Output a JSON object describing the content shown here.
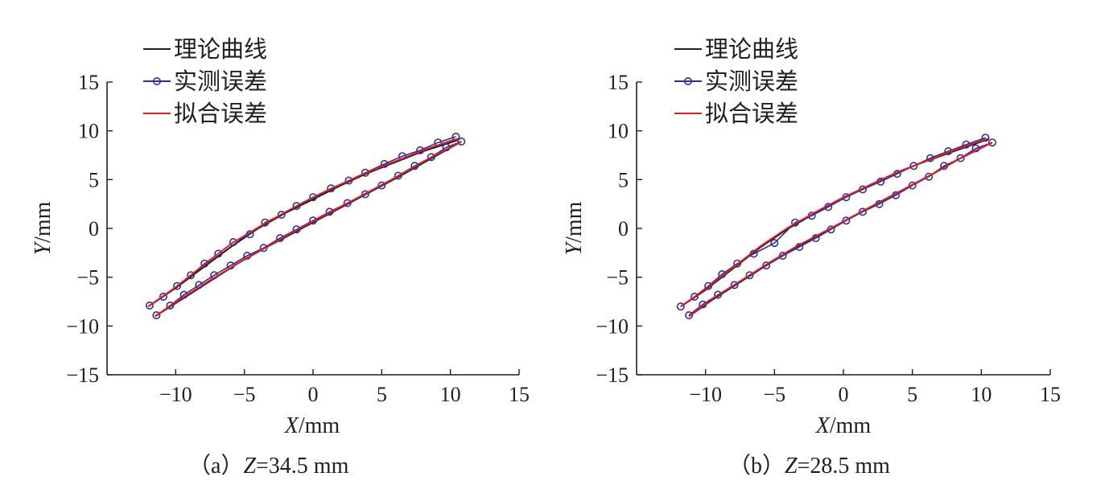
{
  "legend": {
    "theory": "理论曲线",
    "measured": "实测误差",
    "fitted": "拟合误差"
  },
  "colors": {
    "theory": "#231f20",
    "measured": "#2e3192",
    "fitted": "#ed1c24",
    "axis": "#231f20"
  },
  "chart_data": [
    {
      "type": "line",
      "caption_prefix": "（a）",
      "caption_var": "Z",
      "caption_value": "=34.5 mm",
      "xlabel_var": "X",
      "xlabel_unit": "/mm",
      "ylabel_var": "Y",
      "ylabel_unit": "/mm",
      "xlim": [
        -15,
        15
      ],
      "ylim": [
        -15,
        15
      ],
      "xticks": [
        -10,
        -5,
        0,
        5,
        10,
        15
      ],
      "yticks": [
        -15,
        -10,
        -5,
        0,
        5,
        10,
        15
      ],
      "series": [
        {
          "name": "理论曲线",
          "upper": [
            [
              -12.0,
              -8.0
            ],
            [
              -10.0,
              -6.1
            ],
            [
              -8.0,
              -4.0
            ],
            [
              -6.0,
              -1.9
            ],
            [
              -4.0,
              0.0
            ],
            [
              -2.0,
              1.6
            ],
            [
              0.0,
              3.0
            ],
            [
              2.0,
              4.4
            ],
            [
              4.0,
              5.7
            ],
            [
              6.0,
              6.8
            ],
            [
              8.0,
              7.9
            ],
            [
              10.0,
              8.8
            ],
            [
              10.6,
              9.1
            ]
          ],
          "lower": [
            [
              -11.5,
              -9.0
            ],
            [
              -9.5,
              -7.2
            ],
            [
              -7.5,
              -5.4
            ],
            [
              -5.5,
              -3.6
            ],
            [
              -3.5,
              -2.0
            ],
            [
              -1.5,
              -0.5
            ],
            [
              0.5,
              1.0
            ],
            [
              2.5,
              2.5
            ],
            [
              4.5,
              4.0
            ],
            [
              6.5,
              5.5
            ],
            [
              8.5,
              7.1
            ],
            [
              10.8,
              8.9
            ]
          ]
        },
        {
          "name": "实测误差",
          "upper": [
            [
              -11.9,
              -7.9
            ],
            [
              -10.9,
              -7.0
            ],
            [
              -9.9,
              -5.9
            ],
            [
              -8.9,
              -4.8
            ],
            [
              -7.9,
              -3.6
            ],
            [
              -6.9,
              -2.6
            ],
            [
              -5.8,
              -1.4
            ],
            [
              -4.6,
              -0.6
            ],
            [
              -3.5,
              0.6
            ],
            [
              -2.3,
              1.4
            ],
            [
              -1.2,
              2.3
            ],
            [
              0.0,
              3.2
            ],
            [
              1.3,
              4.1
            ],
            [
              2.6,
              4.9
            ],
            [
              3.8,
              5.7
            ],
            [
              5.2,
              6.6
            ],
            [
              6.5,
              7.4
            ],
            [
              7.8,
              8.0
            ],
            [
              9.1,
              8.8
            ],
            [
              10.4,
              9.4
            ]
          ],
          "lower": [
            [
              -11.4,
              -8.9
            ],
            [
              -10.4,
              -7.9
            ],
            [
              -9.4,
              -6.8
            ],
            [
              -8.3,
              -5.8
            ],
            [
              -7.2,
              -4.8
            ],
            [
              -6.0,
              -3.8
            ],
            [
              -4.8,
              -2.8
            ],
            [
              -3.6,
              -2.0
            ],
            [
              -2.4,
              -1.0
            ],
            [
              -1.2,
              -0.1
            ],
            [
              0.0,
              0.8
            ],
            [
              1.2,
              1.7
            ],
            [
              2.5,
              2.6
            ],
            [
              3.8,
              3.5
            ],
            [
              5.0,
              4.4
            ],
            [
              6.2,
              5.4
            ],
            [
              7.4,
              6.4
            ],
            [
              8.6,
              7.3
            ],
            [
              9.7,
              8.3
            ],
            [
              10.8,
              8.9
            ]
          ]
        },
        {
          "name": "拟合误差",
          "upper": [
            [
              -12.0,
              -8.0
            ],
            [
              -10.0,
              -6.0
            ],
            [
              -8.0,
              -3.8
            ],
            [
              -6.0,
              -1.6
            ],
            [
              -4.0,
              0.1
            ],
            [
              -2.0,
              1.7
            ],
            [
              0.0,
              3.2
            ],
            [
              2.0,
              4.5
            ],
            [
              4.0,
              5.8
            ],
            [
              6.0,
              6.9
            ],
            [
              8.0,
              8.0
            ],
            [
              10.0,
              9.0
            ],
            [
              10.6,
              9.2
            ]
          ],
          "lower": [
            [
              -11.5,
              -9.0
            ],
            [
              -9.5,
              -7.1
            ],
            [
              -7.5,
              -5.3
            ],
            [
              -5.5,
              -3.6
            ],
            [
              -3.5,
              -2.0
            ],
            [
              -1.5,
              -0.4
            ],
            [
              0.5,
              1.1
            ],
            [
              2.5,
              2.6
            ],
            [
              4.5,
              4.1
            ],
            [
              6.5,
              5.6
            ],
            [
              8.5,
              7.2
            ],
            [
              10.8,
              8.9
            ]
          ]
        }
      ]
    },
    {
      "type": "line",
      "caption_prefix": "（b）",
      "caption_var": "Z",
      "caption_value": "=28.5 mm",
      "xlabel_var": "X",
      "xlabel_unit": "/mm",
      "ylabel_var": "Y",
      "ylabel_unit": "/mm",
      "xlim": [
        -15,
        15
      ],
      "ylim": [
        -15,
        15
      ],
      "xticks": [
        -10,
        -5,
        0,
        5,
        10,
        15
      ],
      "yticks": [
        -15,
        -10,
        -5,
        0,
        5,
        10,
        15
      ],
      "series": [
        {
          "name": "理论曲线",
          "upper": [
            [
              -11.8,
              -8.0
            ],
            [
              -10.0,
              -6.3
            ],
            [
              -8.0,
              -4.1
            ],
            [
              -6.0,
              -1.9
            ],
            [
              -4.0,
              0.0
            ],
            [
              -2.0,
              1.6
            ],
            [
              0.0,
              3.1
            ],
            [
              2.0,
              4.5
            ],
            [
              4.0,
              5.8
            ],
            [
              6.0,
              6.9
            ],
            [
              8.0,
              7.9
            ],
            [
              10.0,
              8.9
            ],
            [
              10.5,
              9.2
            ]
          ],
          "lower": [
            [
              -11.2,
              -9.0
            ],
            [
              -9.5,
              -7.3
            ],
            [
              -7.5,
              -5.5
            ],
            [
              -5.5,
              -3.7
            ],
            [
              -3.5,
              -2.0
            ],
            [
              -1.5,
              -0.5
            ],
            [
              0.5,
              1.1
            ],
            [
              2.5,
              2.6
            ],
            [
              4.5,
              4.1
            ],
            [
              6.5,
              5.6
            ],
            [
              8.5,
              7.2
            ],
            [
              10.8,
              8.8
            ]
          ]
        },
        {
          "name": "实测误差",
          "upper": [
            [
              -11.8,
              -8.0
            ],
            [
              -10.8,
              -7.0
            ],
            [
              -9.8,
              -5.9
            ],
            [
              -8.8,
              -4.7
            ],
            [
              -7.7,
              -3.6
            ],
            [
              -6.5,
              -2.6
            ],
            [
              -5.0,
              -1.5
            ],
            [
              -3.5,
              0.6
            ],
            [
              -2.3,
              1.3
            ],
            [
              -1.1,
              2.2
            ],
            [
              0.2,
              3.2
            ],
            [
              1.4,
              4.0
            ],
            [
              2.7,
              4.8
            ],
            [
              3.9,
              5.6
            ],
            [
              5.1,
              6.4
            ],
            [
              6.3,
              7.2
            ],
            [
              7.6,
              7.9
            ],
            [
              8.9,
              8.6
            ],
            [
              10.3,
              9.3
            ]
          ],
          "lower": [
            [
              -11.2,
              -8.9
            ],
            [
              -10.2,
              -7.8
            ],
            [
              -9.1,
              -6.8
            ],
            [
              -7.9,
              -5.8
            ],
            [
              -6.8,
              -4.8
            ],
            [
              -5.6,
              -3.8
            ],
            [
              -4.4,
              -2.8
            ],
            [
              -3.2,
              -1.9
            ],
            [
              -2.0,
              -1.0
            ],
            [
              -0.9,
              -0.1
            ],
            [
              0.2,
              0.8
            ],
            [
              1.4,
              1.7
            ],
            [
              2.6,
              2.5
            ],
            [
              3.8,
              3.4
            ],
            [
              5.0,
              4.4
            ],
            [
              6.2,
              5.3
            ],
            [
              7.3,
              6.4
            ],
            [
              8.5,
              7.2
            ],
            [
              9.6,
              8.2
            ],
            [
              10.8,
              8.8
            ]
          ]
        },
        {
          "name": "拟合误差",
          "upper": [
            [
              -11.8,
              -8.0
            ],
            [
              -10.0,
              -6.2
            ],
            [
              -8.0,
              -4.0
            ],
            [
              -6.0,
              -1.8
            ],
            [
              -4.0,
              0.1
            ],
            [
              -2.0,
              1.7
            ],
            [
              0.0,
              3.2
            ],
            [
              2.0,
              4.5
            ],
            [
              4.0,
              5.8
            ],
            [
              6.0,
              6.9
            ],
            [
              8.0,
              8.0
            ],
            [
              10.0,
              9.0
            ],
            [
              10.5,
              9.2
            ]
          ],
          "lower": [
            [
              -11.2,
              -9.0
            ],
            [
              -9.5,
              -7.2
            ],
            [
              -7.5,
              -5.4
            ],
            [
              -5.5,
              -3.6
            ],
            [
              -3.5,
              -1.9
            ],
            [
              -1.5,
              -0.4
            ],
            [
              0.5,
              1.1
            ],
            [
              2.5,
              2.6
            ],
            [
              4.5,
              4.1
            ],
            [
              6.5,
              5.6
            ],
            [
              8.5,
              7.2
            ],
            [
              10.8,
              8.8
            ]
          ]
        }
      ]
    }
  ]
}
